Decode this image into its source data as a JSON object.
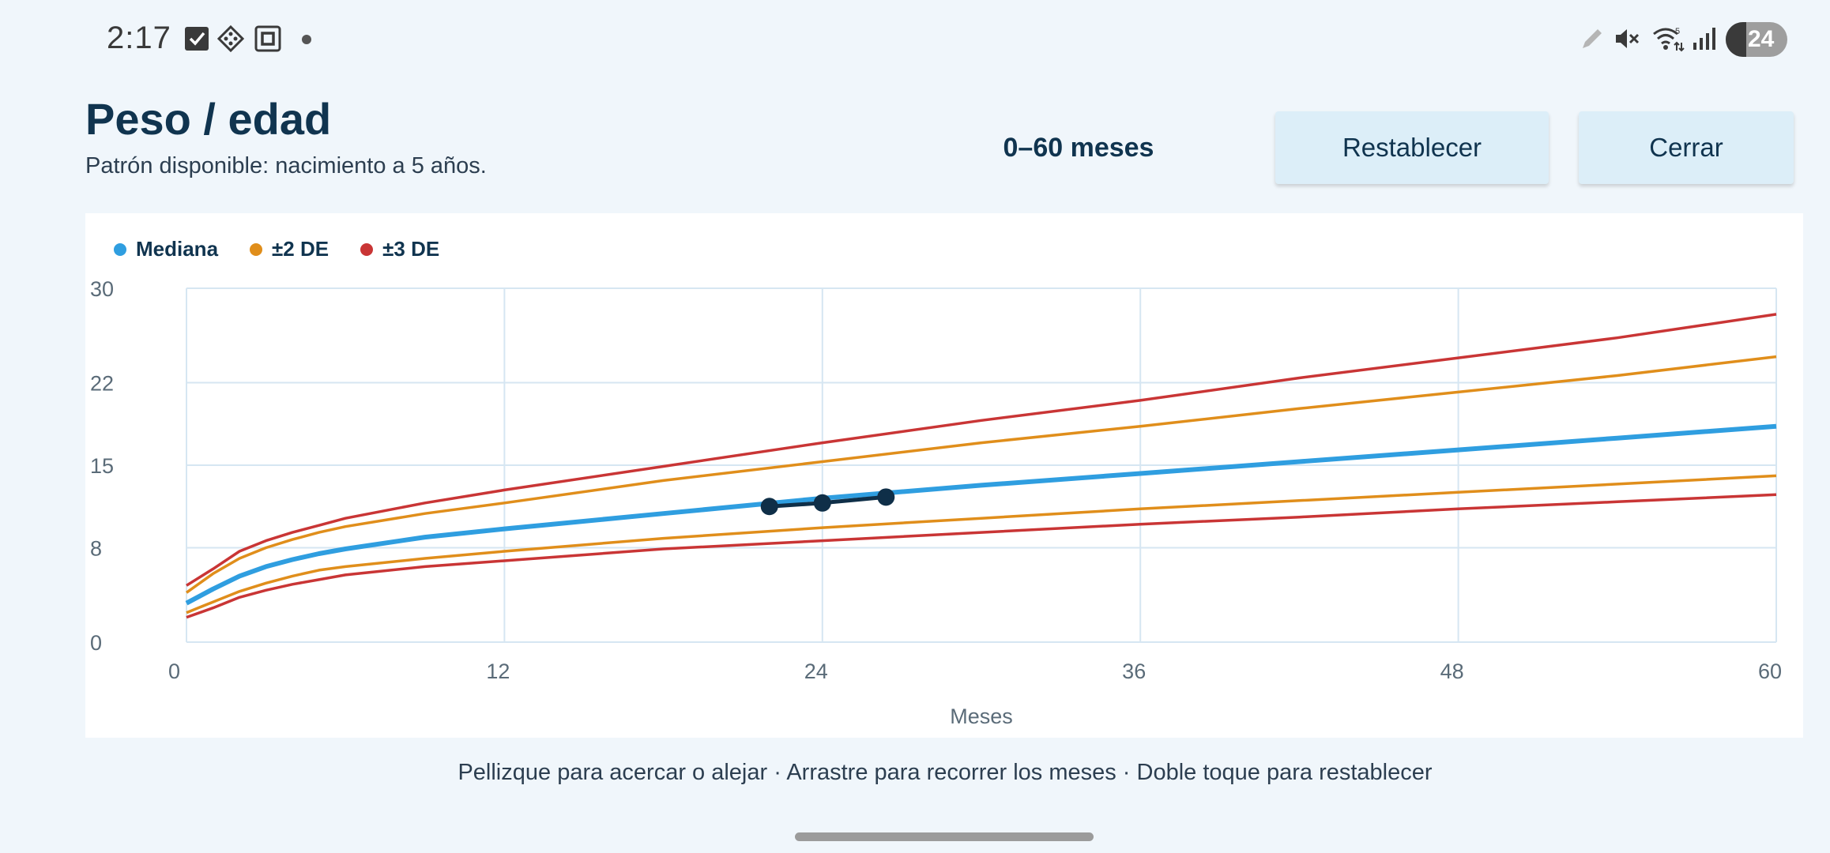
{
  "status_bar": {
    "time": "2:17",
    "left_icons": [
      "checkbox-icon",
      "app-grid-icon",
      "square-app-icon",
      "notification-dot-icon"
    ],
    "right_icons": [
      "pencil-icon",
      "muted-speaker-icon",
      "wifi-icon",
      "signal-icon"
    ],
    "wifi_badge": "5",
    "battery_level": "24"
  },
  "header": {
    "title": "Peso / edad",
    "subtitle": "Patrón disponible: nacimiento a 5 años.",
    "range_label": "0–60 meses",
    "reset_label": "Restablecer",
    "close_label": "Cerrar"
  },
  "hint": "Pellizque para acercar o alejar · Arrastre para recorrer los meses · Doble toque para restablecer",
  "colors": {
    "median": "#2f9ee0",
    "sd2": "#e08e1b",
    "sd3": "#c93535",
    "patient": "#0f2f48",
    "grid": "#d6e6f2"
  },
  "chart_data": {
    "type": "line",
    "title": "",
    "xlabel": "Meses",
    "ylabel": "",
    "xlim": [
      0,
      60
    ],
    "ylim": [
      0,
      30
    ],
    "x_ticks": [
      0,
      12,
      24,
      36,
      48,
      60
    ],
    "y_ticks": [
      0,
      8,
      15,
      22,
      30
    ],
    "grid": true,
    "legend": [
      {
        "label": "Mediana",
        "color": "#2f9ee0"
      },
      {
        "label": "±2 DE",
        "color": "#e08e1b"
      },
      {
        "label": "±3 DE",
        "color": "#c93535"
      }
    ],
    "x": [
      0,
      1,
      2,
      3,
      4,
      5,
      6,
      9,
      12,
      18,
      24,
      30,
      36,
      42,
      48,
      54,
      60
    ],
    "series": [
      {
        "name": "Mediana",
        "values": [
          3.3,
          4.5,
          5.6,
          6.4,
          7.0,
          7.5,
          7.9,
          8.9,
          9.6,
          10.9,
          12.2,
          13.3,
          14.3,
          15.3,
          16.3,
          17.3,
          18.3
        ]
      },
      {
        "name": "±2 DE",
        "values": [
          4.2,
          5.8,
          7.1,
          8.0,
          8.7,
          9.3,
          9.8,
          10.9,
          11.8,
          13.7,
          15.3,
          16.9,
          18.3,
          19.8,
          21.2,
          22.6,
          24.2
        ]
      },
      {
        "name": "±2 DE",
        "values": [
          2.5,
          3.4,
          4.3,
          5.0,
          5.6,
          6.1,
          6.4,
          7.1,
          7.7,
          8.8,
          9.7,
          10.5,
          11.3,
          12.0,
          12.7,
          13.4,
          14.1
        ]
      },
      {
        "name": "±3 DE",
        "values": [
          4.8,
          6.2,
          7.7,
          8.6,
          9.3,
          9.9,
          10.5,
          11.8,
          12.9,
          14.9,
          16.9,
          18.8,
          20.5,
          22.4,
          24.1,
          25.8,
          27.8
        ]
      },
      {
        "name": "±3 DE",
        "values": [
          2.1,
          2.9,
          3.8,
          4.4,
          4.9,
          5.3,
          5.7,
          6.4,
          6.9,
          7.9,
          8.6,
          9.3,
          10.0,
          10.6,
          11.3,
          11.9,
          12.5
        ]
      }
    ],
    "patient_points": [
      {
        "x": 22,
        "y": 11.5
      },
      {
        "x": 24,
        "y": 11.8
      },
      {
        "x": 26.4,
        "y": 12.3
      }
    ]
  }
}
